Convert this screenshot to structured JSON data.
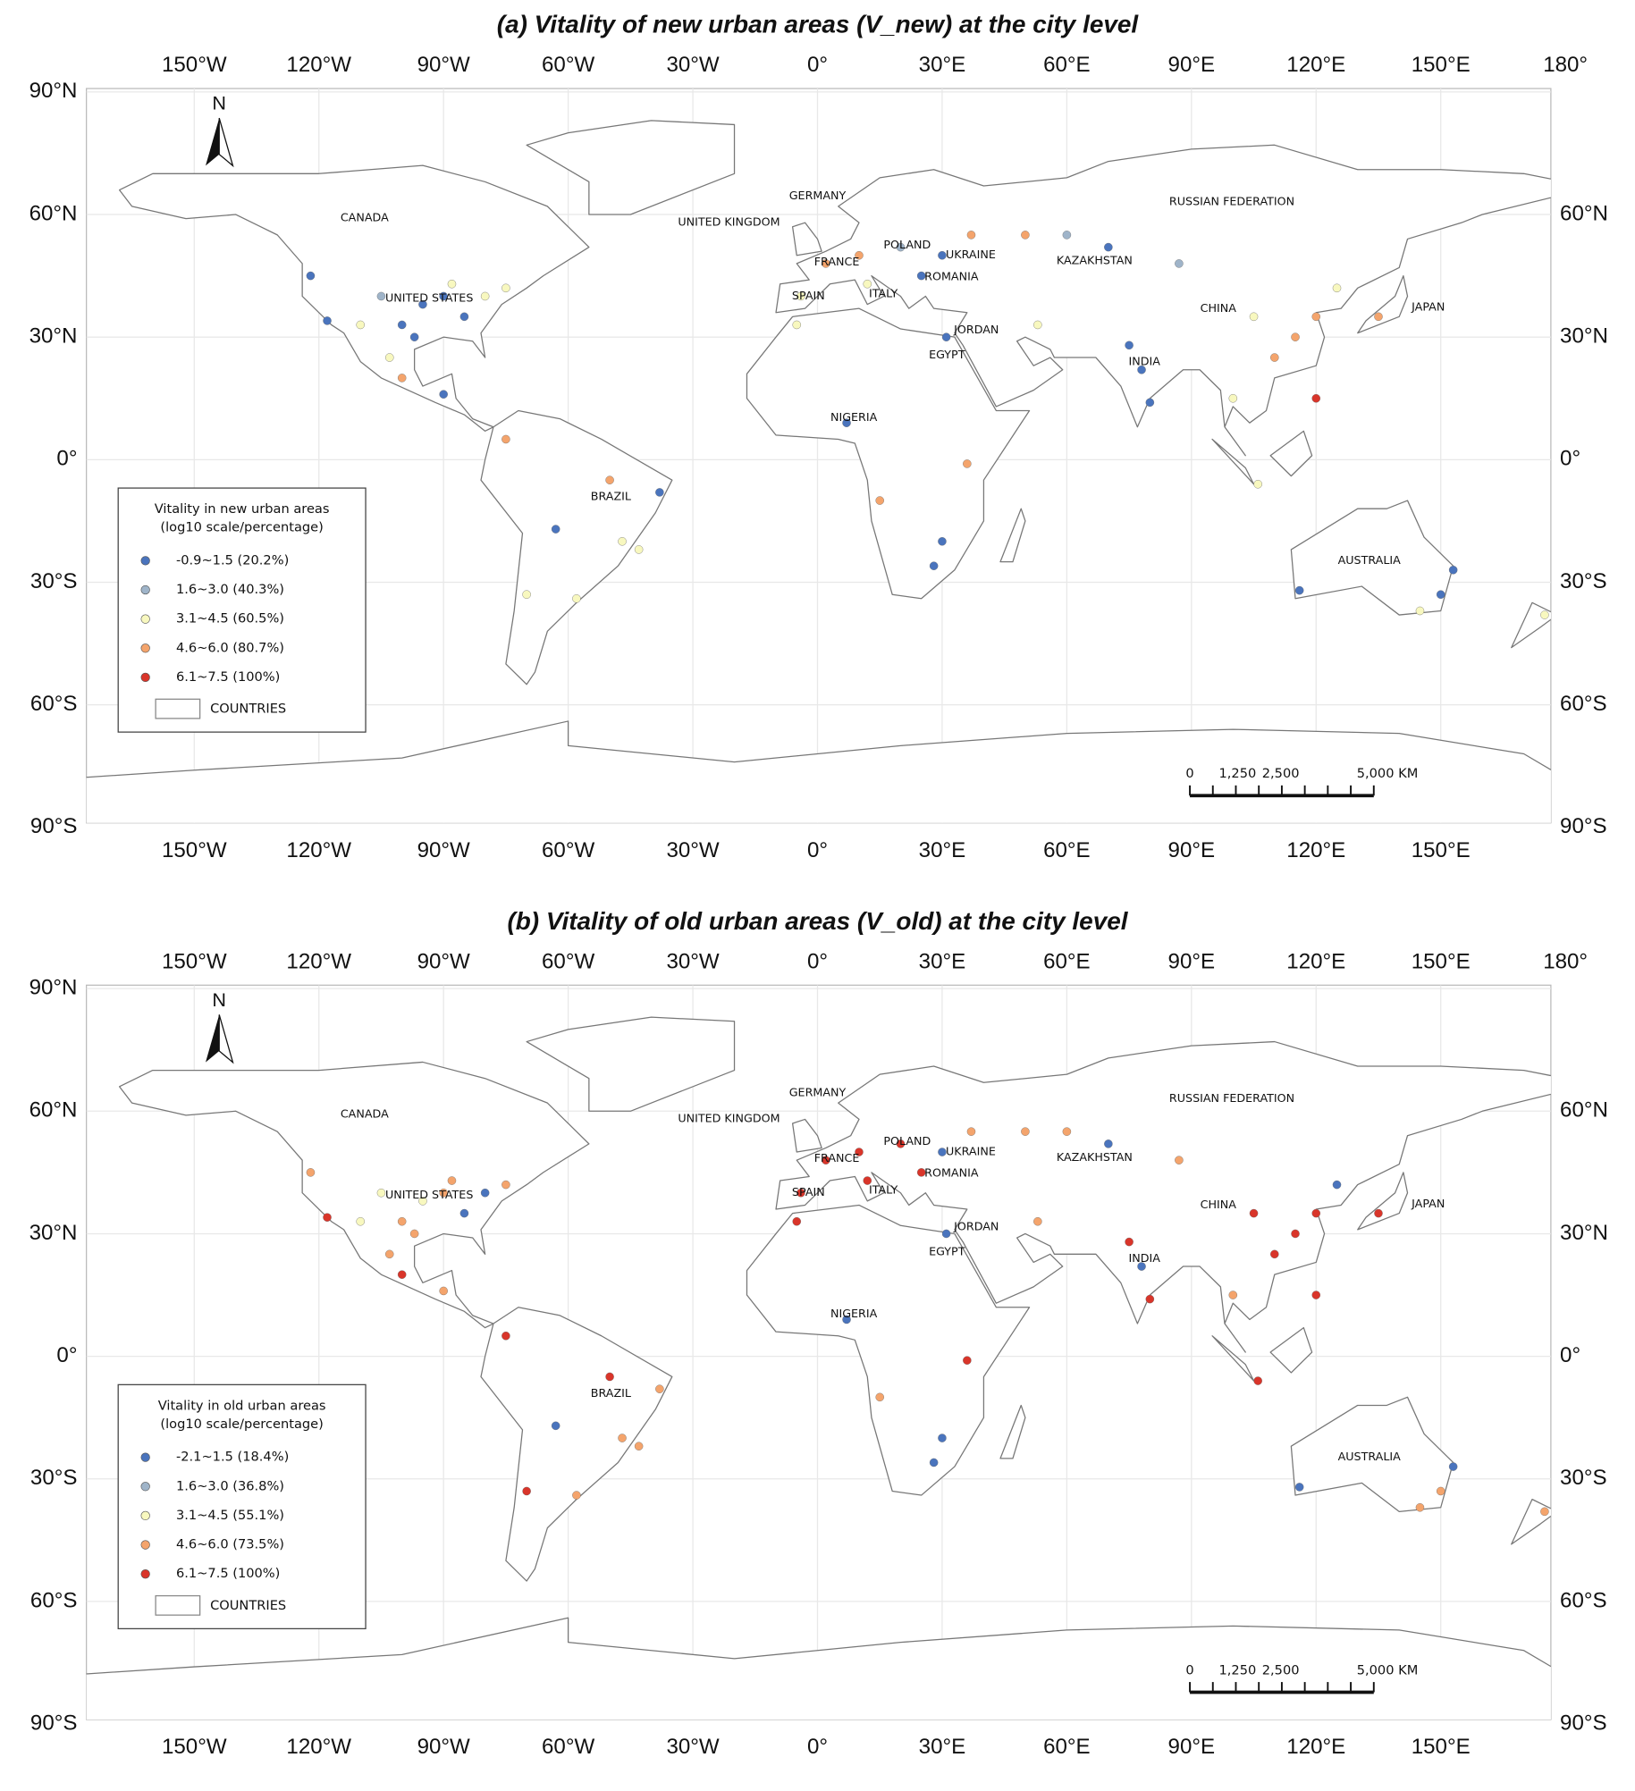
{
  "north_label": "N",
  "lon_ticks": [
    {
      "value": -150,
      "label": "150°W"
    },
    {
      "value": -120,
      "label": "120°W"
    },
    {
      "value": -90,
      "label": "90°W"
    },
    {
      "value": -60,
      "label": "60°W"
    },
    {
      "value": -30,
      "label": "30°W"
    },
    {
      "value": 0,
      "label": "0°"
    },
    {
      "value": 30,
      "label": "30°E"
    },
    {
      "value": 60,
      "label": "60°E"
    },
    {
      "value": 90,
      "label": "90°E"
    },
    {
      "value": 120,
      "label": "120°E"
    },
    {
      "value": 150,
      "label": "150°E"
    },
    {
      "value": 180,
      "label": "180°"
    }
  ],
  "lat_ticks": [
    {
      "value": 90,
      "label": "90°N"
    },
    {
      "value": 60,
      "label": "60°N"
    },
    {
      "value": 30,
      "label": "30°N"
    },
    {
      "value": 0,
      "label": "0°"
    },
    {
      "value": -30,
      "label": "30°S"
    },
    {
      "value": -60,
      "label": "60°S"
    },
    {
      "value": -90,
      "label": "90°S"
    }
  ],
  "country_labels": [
    "CANADA",
    "UNITED STATES",
    "BRAZIL",
    "GERMANY",
    "UNITED KINGDOM",
    "POLAND",
    "FRANCE",
    "UKRAINE",
    "ROMANIA",
    "KAZAKHSTAN",
    "RUSSIAN FEDERATION",
    "SPAIN",
    "ITALY",
    "CHINA",
    "JAPAN",
    "JORDAN",
    "EGYPT",
    "INDIA",
    "NIGERIA",
    "AUSTRALIA"
  ],
  "scale_bar_labels": [
    "0",
    "1,250",
    "2,500",
    "5,000 KM"
  ],
  "panels": [
    {
      "title": "(a) Vitality of new urban areas (V_new) at the city level",
      "legend_title": [
        "Vitality in new urban areas",
        "(log10 scale/percentage)"
      ],
      "legend_classes": [
        {
          "label": "-0.9~1.5 (20.2%)",
          "color": "#4a74bd"
        },
        {
          "label": "1.6~3.0 (40.3%)",
          "color": "#9fb4c9"
        },
        {
          "label": "3.1~4.5 (60.5%)",
          "color": "#f8f8bf"
        },
        {
          "label": "4.6~6.0 (80.7%)",
          "color": "#f4a46c"
        },
        {
          "label": "6.1~7.5 (100%)",
          "color": "#d9352a"
        }
      ],
      "legend_boundary": "COUNTRIES",
      "points": [
        [
          -95,
          38,
          0
        ],
        [
          -90,
          40,
          0
        ],
        [
          -85,
          35,
          0
        ],
        [
          -100,
          33,
          0
        ],
        [
          -118,
          34,
          0
        ],
        [
          -80,
          40,
          2
        ],
        [
          -105,
          40,
          1
        ],
        [
          -88,
          43,
          2
        ],
        [
          -75,
          42,
          2
        ],
        [
          -97,
          30,
          0
        ],
        [
          -122,
          45,
          0
        ],
        [
          -110,
          33,
          2
        ],
        [
          -100,
          20,
          3
        ],
        [
          -90,
          16,
          0
        ],
        [
          -103,
          25,
          2
        ],
        [
          -75,
          5,
          3
        ],
        [
          -47,
          -20,
          2
        ],
        [
          -43,
          -22,
          2
        ],
        [
          -58,
          -34,
          2
        ],
        [
          -70,
          -33,
          2
        ],
        [
          -50,
          -5,
          3
        ],
        [
          -63,
          -17,
          0
        ],
        [
          -38,
          -8,
          0
        ],
        [
          2,
          48,
          3
        ],
        [
          10,
          50,
          3
        ],
        [
          20,
          52,
          1
        ],
        [
          30,
          50,
          0
        ],
        [
          25,
          45,
          0
        ],
        [
          -4,
          40,
          2
        ],
        [
          12,
          43,
          2
        ],
        [
          37,
          55,
          3
        ],
        [
          50,
          55,
          3
        ],
        [
          60,
          55,
          1
        ],
        [
          70,
          52,
          0
        ],
        [
          7,
          9,
          0
        ],
        [
          28,
          -26,
          0
        ],
        [
          30,
          -20,
          0
        ],
        [
          36,
          -1,
          3
        ],
        [
          31,
          30,
          0
        ],
        [
          -5,
          33,
          2
        ],
        [
          15,
          -10,
          3
        ],
        [
          115,
          30,
          3
        ],
        [
          110,
          25,
          3
        ],
        [
          120,
          35,
          3
        ],
        [
          105,
          35,
          2
        ],
        [
          125,
          42,
          2
        ],
        [
          135,
          35,
          3
        ],
        [
          78,
          22,
          0
        ],
        [
          75,
          28,
          0
        ],
        [
          80,
          14,
          0
        ],
        [
          100,
          15,
          2
        ],
        [
          106,
          -6,
          2
        ],
        [
          120,
          15,
          4
        ],
        [
          87,
          48,
          1
        ],
        [
          53,
          33,
          2
        ],
        [
          150,
          -33,
          0
        ],
        [
          145,
          -37,
          2
        ],
        [
          116,
          -32,
          0
        ],
        [
          153,
          -27,
          0
        ],
        [
          175,
          -38,
          2
        ]
      ]
    },
    {
      "title": "(b) Vitality of old urban areas (V_old) at the city level",
      "legend_title": [
        "Vitality in old urban areas",
        "(log10 scale/percentage)"
      ],
      "legend_classes": [
        {
          "label": "-2.1~1.5 (18.4%)",
          "color": "#4a74bd"
        },
        {
          "label": "1.6~3.0 (36.8%)",
          "color": "#9fb4c9"
        },
        {
          "label": "3.1~4.5 (55.1%)",
          "color": "#f8f8bf"
        },
        {
          "label": "4.6~6.0 (73.5%)",
          "color": "#f4a46c"
        },
        {
          "label": "6.1~7.5 (100%)",
          "color": "#d9352a"
        }
      ],
      "legend_boundary": "COUNTRIES",
      "points": [
        [
          -95,
          38,
          2
        ],
        [
          -90,
          40,
          3
        ],
        [
          -85,
          35,
          0
        ],
        [
          -100,
          33,
          3
        ],
        [
          -118,
          34,
          4
        ],
        [
          -80,
          40,
          0
        ],
        [
          -105,
          40,
          2
        ],
        [
          -88,
          43,
          3
        ],
        [
          -75,
          42,
          3
        ],
        [
          -97,
          30,
          3
        ],
        [
          -122,
          45,
          3
        ],
        [
          -110,
          33,
          2
        ],
        [
          -100,
          20,
          4
        ],
        [
          -90,
          16,
          3
        ],
        [
          -103,
          25,
          3
        ],
        [
          -75,
          5,
          4
        ],
        [
          -47,
          -20,
          3
        ],
        [
          -43,
          -22,
          3
        ],
        [
          -58,
          -34,
          3
        ],
        [
          -70,
          -33,
          4
        ],
        [
          -50,
          -5,
          4
        ],
        [
          -63,
          -17,
          0
        ],
        [
          -38,
          -8,
          3
        ],
        [
          2,
          48,
          4
        ],
        [
          10,
          50,
          4
        ],
        [
          20,
          52,
          4
        ],
        [
          30,
          50,
          0
        ],
        [
          25,
          45,
          4
        ],
        [
          -4,
          40,
          4
        ],
        [
          12,
          43,
          4
        ],
        [
          37,
          55,
          3
        ],
        [
          50,
          55,
          3
        ],
        [
          60,
          55,
          3
        ],
        [
          70,
          52,
          0
        ],
        [
          7,
          9,
          0
        ],
        [
          28,
          -26,
          0
        ],
        [
          30,
          -20,
          0
        ],
        [
          36,
          -1,
          4
        ],
        [
          31,
          30,
          0
        ],
        [
          -5,
          33,
          4
        ],
        [
          15,
          -10,
          3
        ],
        [
          115,
          30,
          4
        ],
        [
          110,
          25,
          4
        ],
        [
          120,
          35,
          4
        ],
        [
          105,
          35,
          4
        ],
        [
          125,
          42,
          0
        ],
        [
          135,
          35,
          4
        ],
        [
          78,
          22,
          0
        ],
        [
          75,
          28,
          4
        ],
        [
          80,
          14,
          4
        ],
        [
          100,
          15,
          3
        ],
        [
          106,
          -6,
          4
        ],
        [
          120,
          15,
          4
        ],
        [
          87,
          48,
          3
        ],
        [
          53,
          33,
          3
        ],
        [
          150,
          -33,
          3
        ],
        [
          145,
          -37,
          3
        ],
        [
          116,
          -32,
          0
        ],
        [
          153,
          -27,
          0
        ],
        [
          175,
          -38,
          3
        ]
      ]
    }
  ]
}
